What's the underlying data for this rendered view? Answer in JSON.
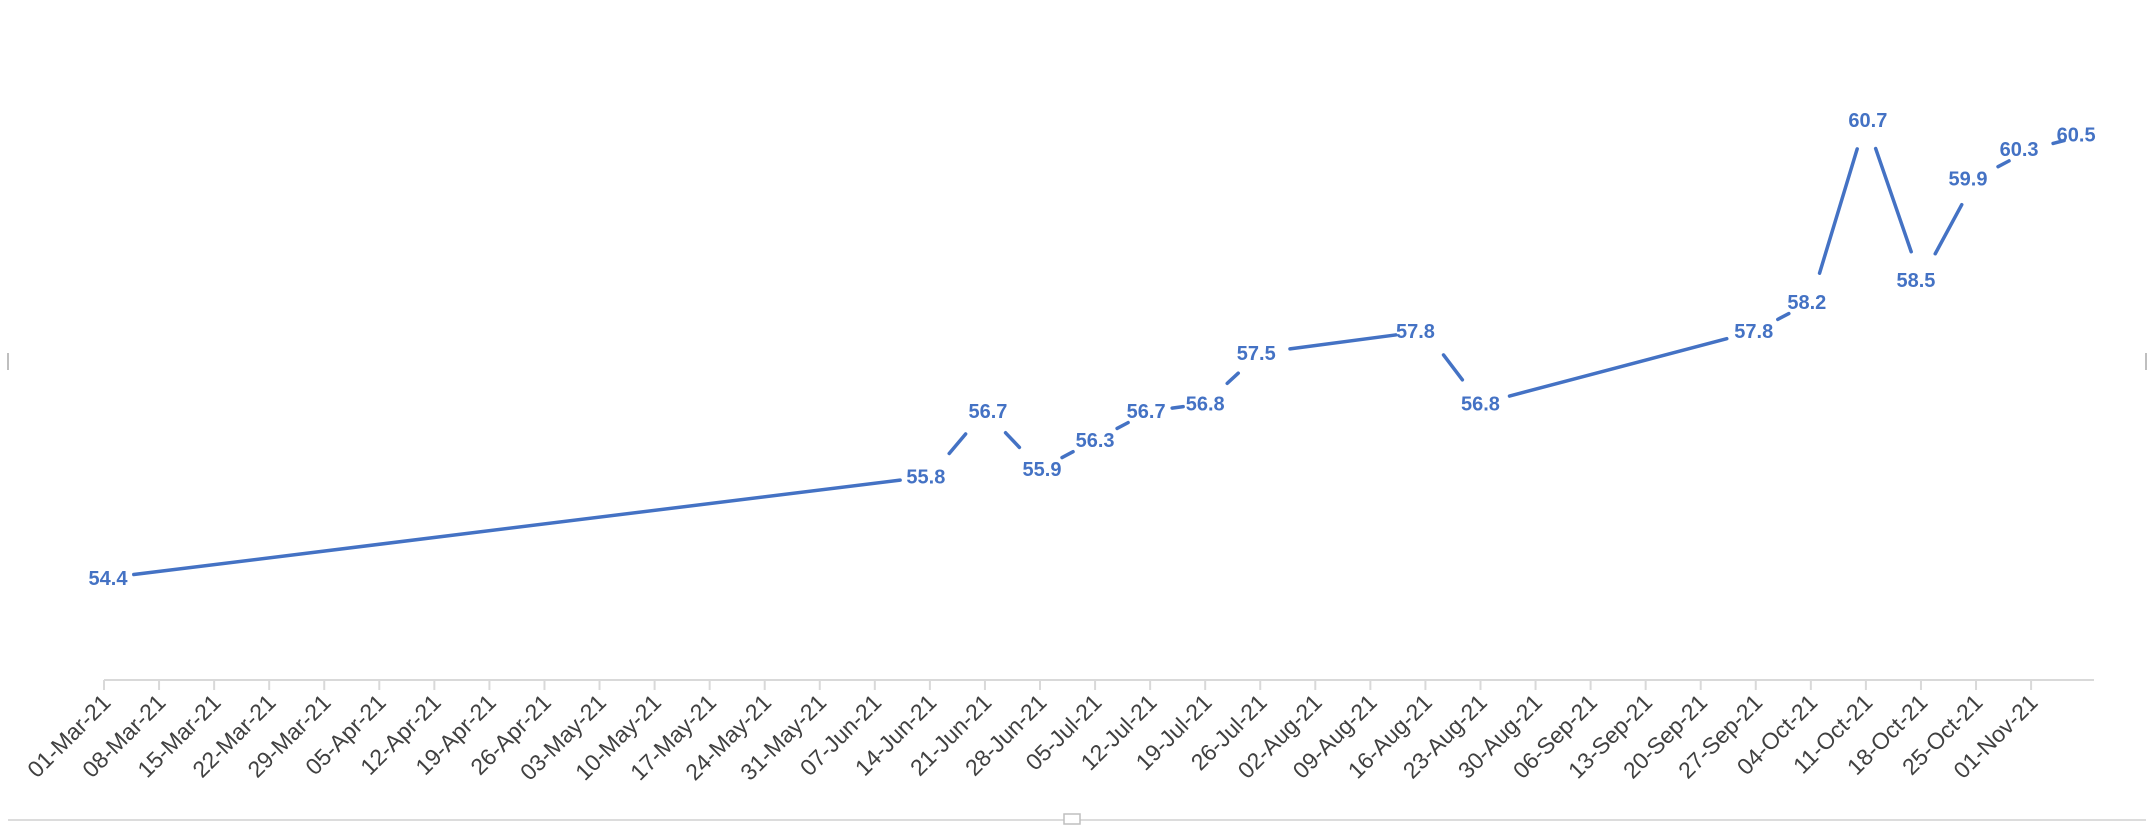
{
  "chart_data": {
    "type": "line",
    "title": "",
    "xlabel": "",
    "ylabel": "",
    "x_tick_labels": [
      "01-Mar-21",
      "08-Mar-21",
      "15-Mar-21",
      "22-Mar-21",
      "29-Mar-21",
      "05-Apr-21",
      "12-Apr-21",
      "19-Apr-21",
      "26-Apr-21",
      "03-May-21",
      "10-May-21",
      "17-May-21",
      "24-May-21",
      "31-May-21",
      "07-Jun-21",
      "14-Jun-21",
      "21-Jun-21",
      "28-Jun-21",
      "05-Jul-21",
      "12-Jul-21",
      "19-Jul-21",
      "26-Jul-21",
      "02-Aug-21",
      "09-Aug-21",
      "16-Aug-21",
      "23-Aug-21",
      "30-Aug-21",
      "06-Sep-21",
      "13-Sep-21",
      "20-Sep-21",
      "27-Sep-21",
      "04-Oct-21",
      "11-Oct-21",
      "18-Oct-21",
      "25-Oct-21",
      "01-Nov-21"
    ],
    "xlim": [
      "2021-03-01",
      "2021-11-09"
    ],
    "ylim": [
      53,
      61.5
    ],
    "grid": false,
    "legend": "none",
    "series": [
      {
        "color": "#4472C4",
        "points": [
          {
            "x": "2021-03-01",
            "y": 54.4,
            "label": "54.4"
          },
          {
            "x": "2021-06-14",
            "y": 55.8,
            "label": "55.8"
          },
          {
            "x": "2021-06-21",
            "y": 56.7,
            "label": "56.7"
          },
          {
            "x": "2021-06-28",
            "y": 55.9,
            "label": "55.9"
          },
          {
            "x": "2021-07-05",
            "y": 56.3,
            "label": "56.3"
          },
          {
            "x": "2021-07-12",
            "y": 56.7,
            "label": "56.7"
          },
          {
            "x": "2021-07-19",
            "y": 56.8,
            "label": "56.8"
          },
          {
            "x": "2021-07-26",
            "y": 57.5,
            "label": "57.5"
          },
          {
            "x": "2021-08-16",
            "y": 57.8,
            "label": "57.8"
          },
          {
            "x": "2021-08-23",
            "y": 56.8,
            "label": "56.8"
          },
          {
            "x": "2021-09-27",
            "y": 57.8,
            "label": "57.8"
          },
          {
            "x": "2021-10-04",
            "y": 58.2,
            "label": "58.2"
          },
          {
            "x": "2021-10-11",
            "y": 60.7,
            "label": "60.7"
          },
          {
            "x": "2021-10-18",
            "y": 58.5,
            "label": "58.5"
          },
          {
            "x": "2021-10-25",
            "y": 59.9,
            "label": "59.9"
          },
          {
            "x": "2021-11-01",
            "y": 60.3,
            "label": "60.3"
          },
          {
            "x": "2021-11-08",
            "y": 60.5,
            "label": "60.5"
          }
        ]
      }
    ]
  }
}
